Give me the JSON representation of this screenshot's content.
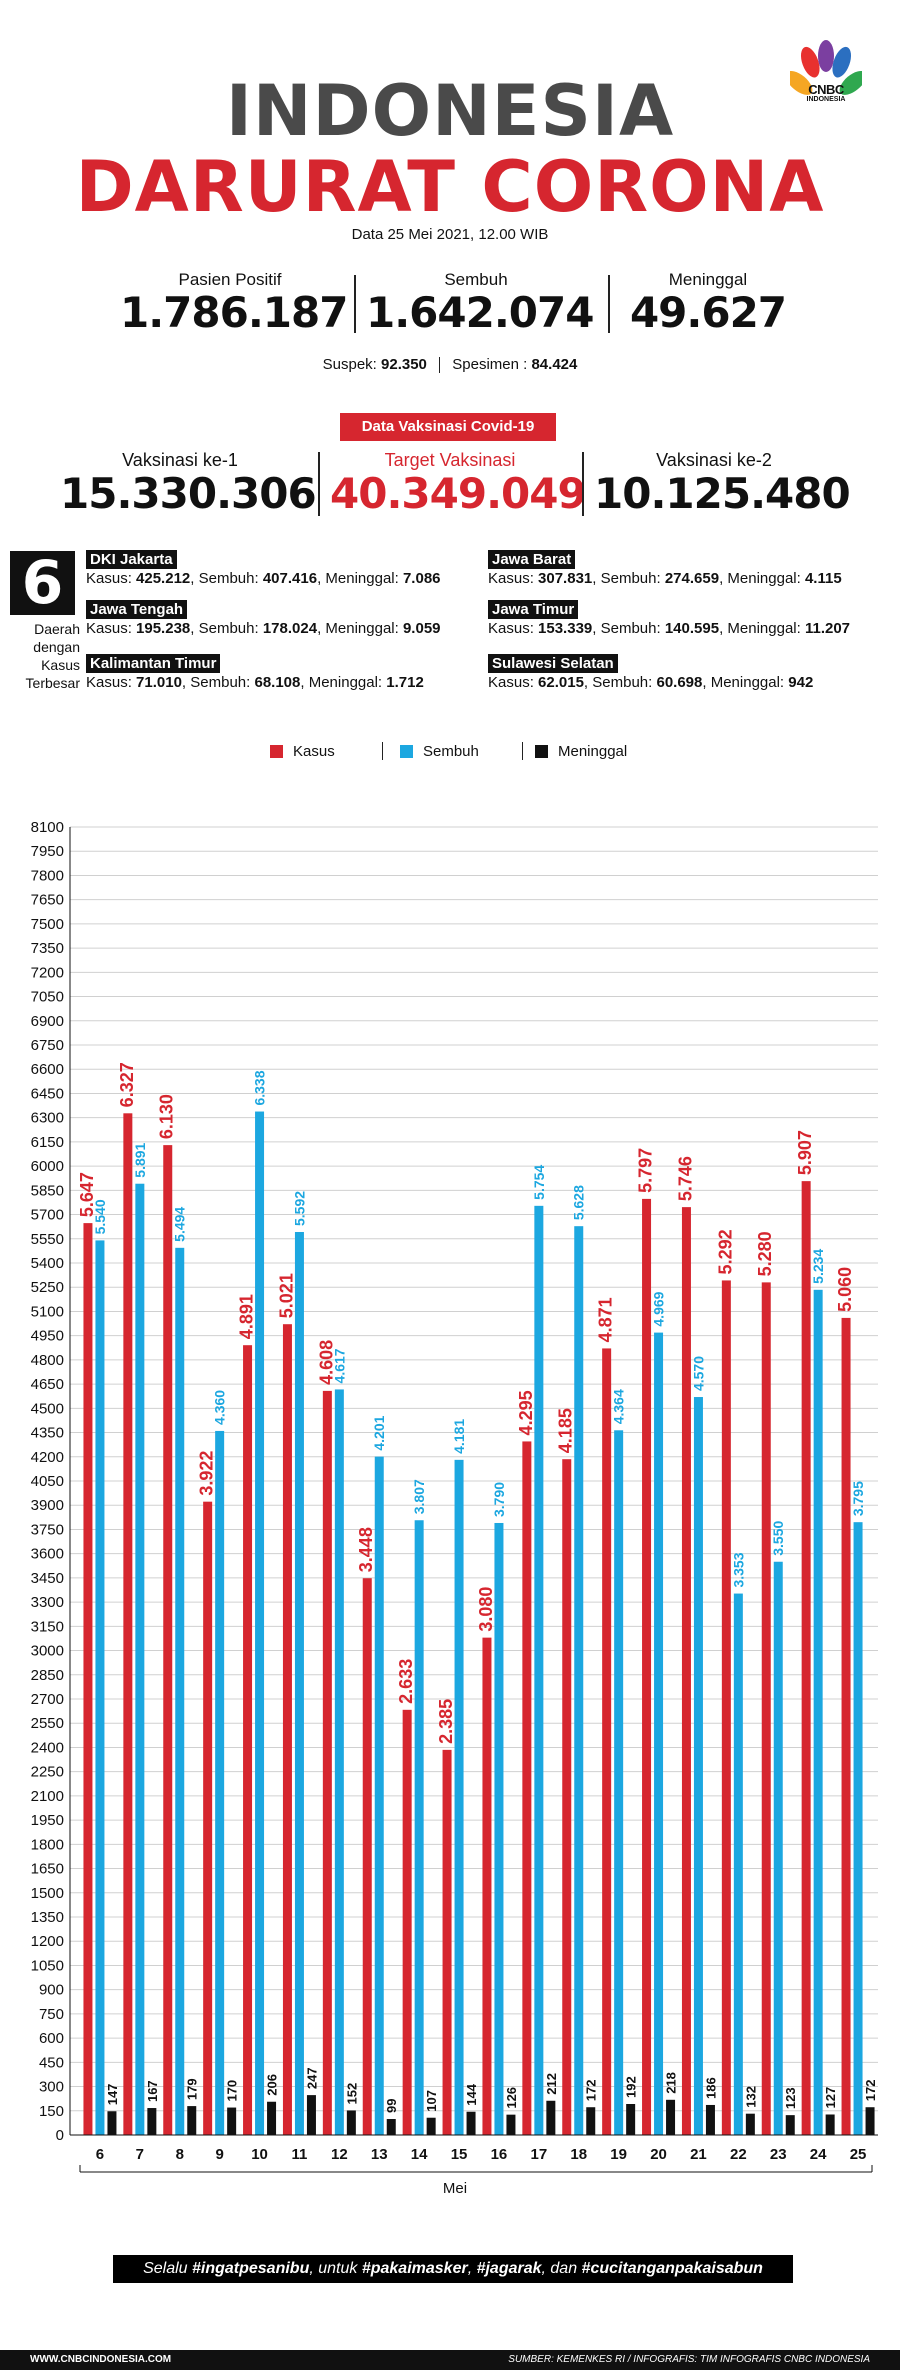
{
  "brand": {
    "logo_text": "CNBC",
    "logo_sub": "INDONESIA"
  },
  "header": {
    "title_line1": "INDONESIA",
    "title_line2": "DARURAT CORONA",
    "date": "Data 25 Mei 2021, 12.00 WIB",
    "accent_color": "#d6262f"
  },
  "stats": {
    "positif": {
      "label": "Pasien Positif",
      "value": "1.786.187"
    },
    "sembuh": {
      "label": "Sembuh",
      "value": "1.642.074"
    },
    "meninggal": {
      "label": "Meninggal",
      "value": "49.627"
    },
    "suspek_label": "Suspek:",
    "suspek_value": "92.350",
    "spesimen_label": "Spesimen :",
    "spesimen_value": "84.424"
  },
  "vaksinasi": {
    "banner": "Data Vaksinasi Covid-19",
    "dosis1": {
      "label": "Vaksinasi ke-1",
      "value": "15.330.306"
    },
    "target": {
      "label": "Target Vaksinasi",
      "value": "40.349.049"
    },
    "dosis2": {
      "label": "Vaksinasi ke-2",
      "value": "10.125.480"
    }
  },
  "regions": {
    "count": "6",
    "caption": [
      "Daerah",
      "dengan",
      "Kasus",
      "Terbesar"
    ],
    "items": [
      {
        "name": "DKI Jakarta",
        "kasus": "425.212",
        "sembuh": "407.416",
        "meninggal": "7.086"
      },
      {
        "name": "Jawa Barat",
        "kasus": "307.831",
        "sembuh": "274.659",
        "meninggal": "4.115"
      },
      {
        "name": "Jawa Tengah",
        "kasus": "195.238",
        "sembuh": "178.024",
        "meninggal": "9.059"
      },
      {
        "name": "Jawa Timur",
        "kasus": "153.339",
        "sembuh": "140.595",
        "meninggal": "11.207"
      },
      {
        "name": "Kalimantan Timur",
        "kasus": "71.010",
        "sembuh": "68.108",
        "meninggal": "1.712"
      },
      {
        "name": "Sulawesi Selatan",
        "kasus": "62.015",
        "sembuh": "60.698",
        "meninggal": "942"
      }
    ],
    "labels": {
      "kasus": "Kasus:",
      "sembuh": "Sembuh:",
      "meninggal": "Meninggal:"
    }
  },
  "chart_data": {
    "type": "bar",
    "title": "",
    "xlabel": "Mei",
    "ylabel": "",
    "ylim": [
      0,
      8100
    ],
    "ytick_step": 150,
    "categories": [
      "6",
      "7",
      "8",
      "9",
      "10",
      "11",
      "12",
      "13",
      "14",
      "15",
      "16",
      "17",
      "18",
      "19",
      "20",
      "21",
      "22",
      "23",
      "24",
      "25"
    ],
    "series": [
      {
        "name": "Kasus",
        "color": "#d6262f",
        "values": [
          5647,
          6327,
          6130,
          3922,
          4891,
          5021,
          4608,
          3448,
          2633,
          2385,
          3080,
          4295,
          4185,
          4871,
          5797,
          5746,
          5292,
          5280,
          5907,
          5060
        ],
        "labels": [
          "5.647",
          "6.327",
          "6.130",
          "3.922",
          "4.891",
          "5.021",
          "4.608",
          "3.448",
          "2.633",
          "2.385",
          "3.080",
          "4.295",
          "4.185",
          "4.871",
          "5.797",
          "5.746",
          "5.292",
          "5.280",
          "5.907",
          "5.060"
        ]
      },
      {
        "name": "Sembuh",
        "color": "#1ca7e0",
        "values": [
          5540,
          5891,
          5494,
          4360,
          6338,
          5592,
          4617,
          4201,
          3807,
          4181,
          3790,
          5754,
          5628,
          4364,
          4969,
          4570,
          3353,
          3550,
          5234,
          3795
        ],
        "labels": [
          "5.540",
          "5.891",
          "5.494",
          "4.360",
          "6.338",
          "5.592",
          "4.617",
          "4.201",
          "3.807",
          "4.181",
          "3.790",
          "5.754",
          "5.628",
          "4.364",
          "4.969",
          "4.570",
          "3.353",
          "3.550",
          "5.234",
          "3.795"
        ]
      },
      {
        "name": "Meninggal",
        "color": "#111111",
        "values": [
          147,
          167,
          179,
          170,
          206,
          247,
          152,
          99,
          107,
          144,
          126,
          212,
          172,
          192,
          218,
          186,
          132,
          123,
          127,
          172
        ],
        "labels": [
          "147",
          "167",
          "179",
          "170",
          "206",
          "247",
          "152",
          "99",
          "107",
          "144",
          "126",
          "212",
          "172",
          "192",
          "218",
          "186",
          "132",
          "123",
          "127",
          "172"
        ]
      }
    ]
  },
  "footer": {
    "hashtag_pre": "Selalu ",
    "hashtag1": "#ingatpesanibu",
    "hashtag_mid1": ", untuk ",
    "hashtag2": "#pakaimasker",
    "hashtag_mid2": ", ",
    "hashtag3": "#jagarak",
    "hashtag_mid3": ", dan ",
    "hashtag4": "#cucitanganpakaisabun",
    "site": "WWW.CNBCINDONESIA.COM",
    "source": "SUMBER: KEMENKES RI / INFOGRAFIS: TIM INFOGRAFIS CNBC INDONESIA"
  }
}
